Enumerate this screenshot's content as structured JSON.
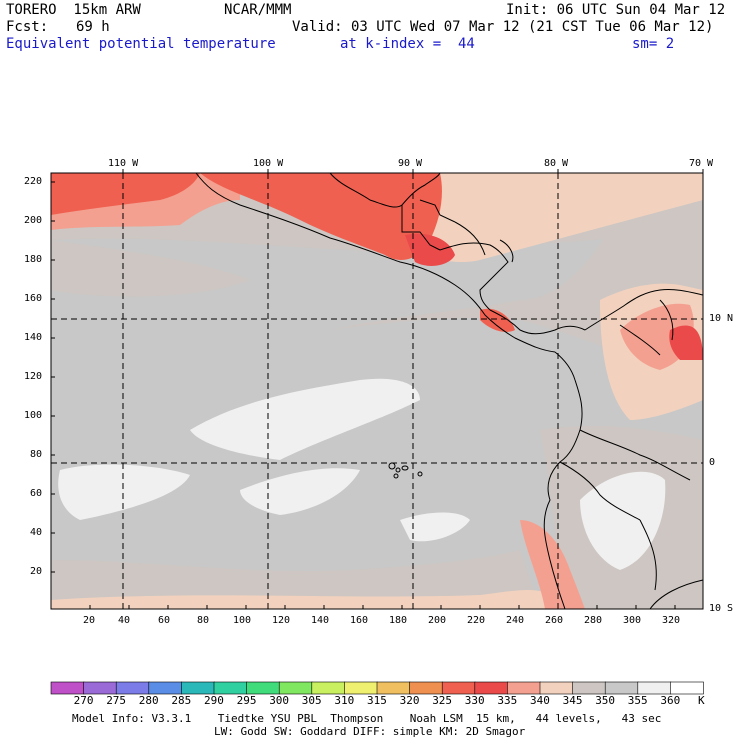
{
  "header": {
    "model": "TORERO  15km ARW",
    "center": "NCAR/MMM",
    "init": "Init: 06 UTC Sun 04 Mar 12",
    "fcst_label": "Fcst:",
    "fcst_value": "69 h",
    "valid": "Valid: 03 UTC Wed 07 Mar 12 (21 CST Tue 06 Mar 12)",
    "field": "Equivalent potential temperature",
    "level": "at k-index =  44",
    "smooth": "sm= 2"
  },
  "map": {
    "lon_labels": [
      "110 W",
      "100 W",
      "90 W",
      "80 W",
      "70 W"
    ],
    "lat_labels": [
      "10 N",
      "0",
      "10 S"
    ],
    "left_axis": [
      "220",
      "200",
      "180",
      "160",
      "140",
      "120",
      "100",
      "80",
      "60",
      "40",
      "20"
    ],
    "bottom_axis": [
      "20",
      "40",
      "60",
      "80",
      "100",
      "120",
      "140",
      "160",
      "180",
      "200",
      "220",
      "240",
      "260",
      "280",
      "300",
      "320"
    ]
  },
  "colorbar": {
    "labels": [
      "270",
      "275",
      "280",
      "285",
      "290",
      "295",
      "300",
      "305",
      "310",
      "315",
      "320",
      "325",
      "330",
      "335",
      "340",
      "345",
      "350",
      "355",
      "360"
    ],
    "unit": "K",
    "colors": [
      "#c050c8",
      "#9a6ad6",
      "#7c7ce8",
      "#5a8ee6",
      "#2ab8b8",
      "#30d0a0",
      "#40dc7c",
      "#80e860",
      "#c8f060",
      "#f0f070",
      "#f0c060",
      "#f09050",
      "#f06050",
      "#ea4a4a",
      "#f4a090",
      "#f2d2be",
      "#cdc6c2",
      "#c8c8c8",
      "#f0f0f0",
      "#ffffff"
    ]
  },
  "footer": {
    "line1": "Model Info: V3.3.1    Tiedtke YSU PBL  Thompson    Noah LSM  15 km,   44 levels,   43 sec",
    "line2": "LW: Godd SW: Goddard DIFF: simple KM: 2D Smagor"
  }
}
